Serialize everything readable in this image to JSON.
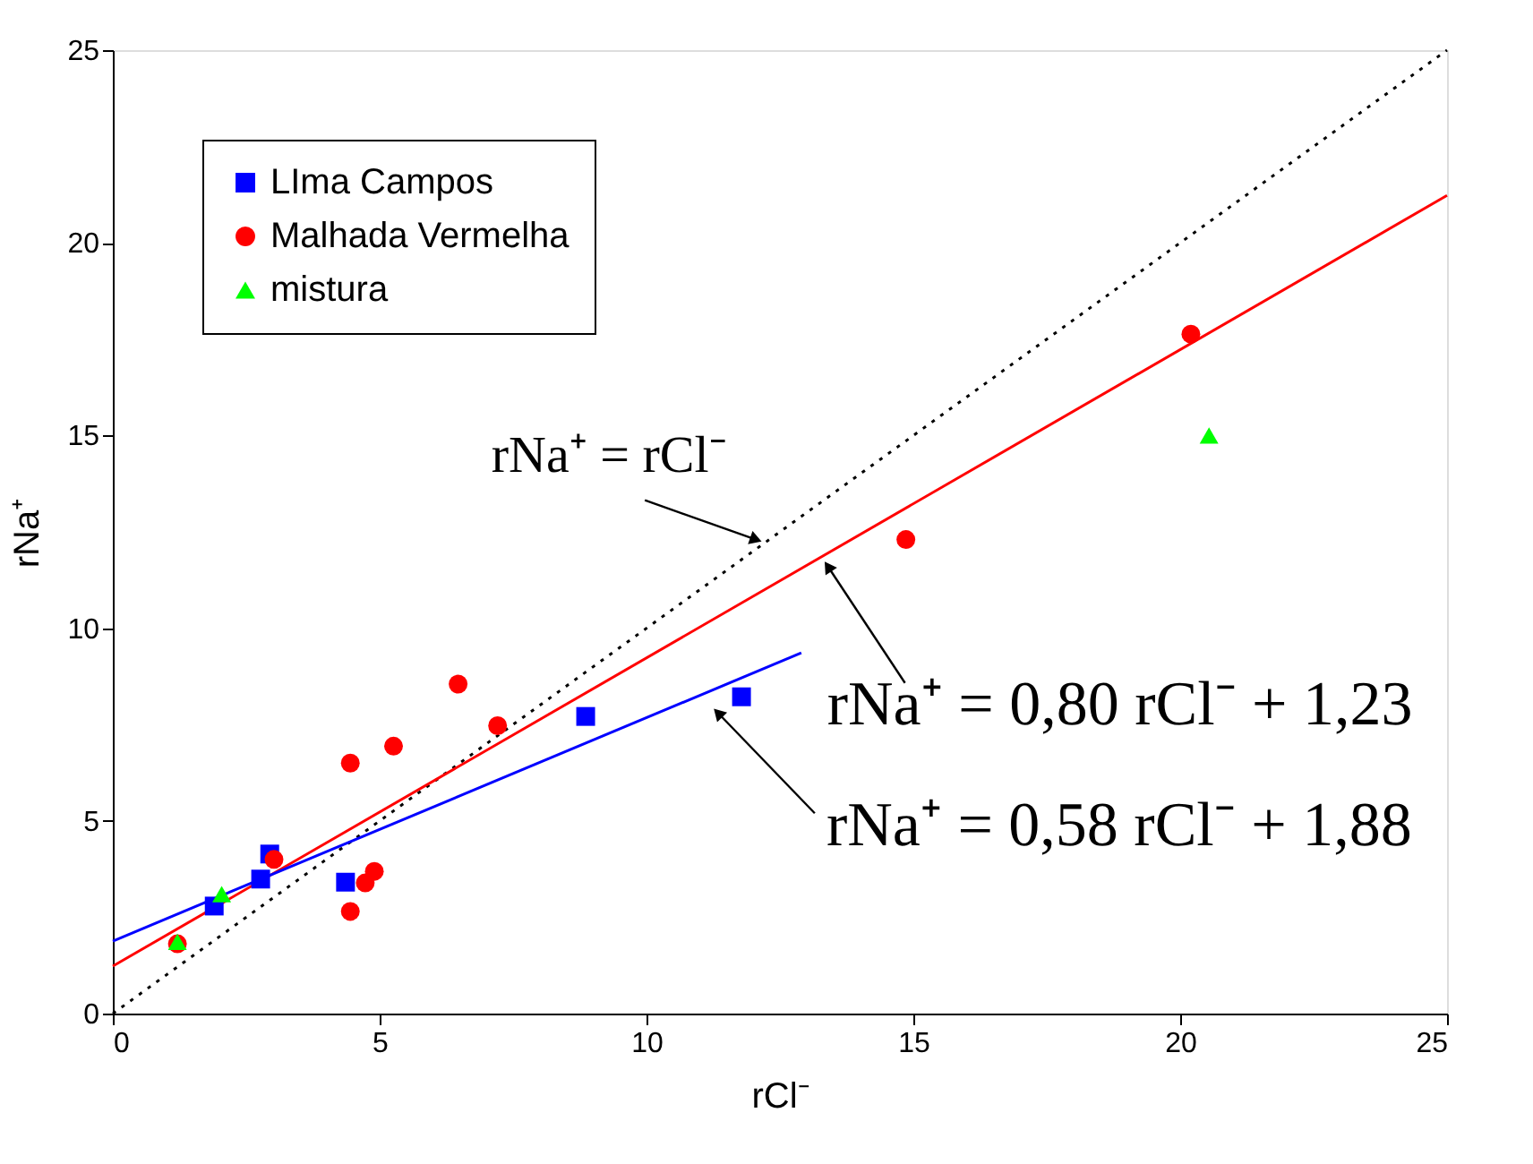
{
  "chart_data": {
    "type": "scatter",
    "xlabel": "rCl⁻",
    "ylabel": "rNa⁺",
    "xlim": [
      0,
      25
    ],
    "ylim": [
      0,
      25
    ],
    "xticks": [
      0,
      5,
      10,
      15,
      20,
      25
    ],
    "yticks": [
      0,
      5,
      10,
      15,
      20,
      25
    ],
    "grid": false,
    "legend": "top left",
    "series": [
      {
        "name": "LIma Campos",
        "marker": "square",
        "color": "#0000ff",
        "x": [
          1.9,
          2.77,
          2.94,
          4.36,
          8.86,
          11.78
        ],
        "values": [
          2.79,
          3.49,
          4.14,
          3.41,
          7.71,
          8.22
        ]
      },
      {
        "name": "Malhada Vermelha",
        "marker": "circle",
        "color": "#ff0000",
        "x": [
          1.21,
          3.02,
          4.45,
          5.26,
          6.47,
          7.21,
          4.9,
          4.73,
          4.45,
          14.86,
          20.2
        ],
        "values": [
          1.81,
          4.0,
          6.5,
          6.94,
          8.55,
          7.47,
          3.69,
          3.39,
          2.65,
          12.3,
          17.63
        ]
      },
      {
        "name": "mistura",
        "marker": "triangle",
        "color": "#00ff00",
        "x": [
          1.21,
          2.04,
          20.54
        ],
        "values": [
          1.86,
          3.1,
          15.0
        ]
      },
      {
        "type": "line",
        "marker": "none",
        "line_style": "dotted",
        "color": "#000000",
        "x": [
          0,
          25
        ],
        "values": [
          0,
          25
        ]
      },
      {
        "type": "line",
        "marker": "none",
        "line_style": "solid",
        "color": "#ff0000",
        "x": [
          0,
          25
        ],
        "values": [
          1.23,
          21.23
        ]
      },
      {
        "type": "line",
        "marker": "none",
        "line_style": "solid",
        "color": "#0000ff",
        "x": [
          0,
          12.9
        ],
        "values": [
          1.88,
          9.36
        ]
      }
    ],
    "annotations": [
      {
        "text": "rNa⁺ = rCl⁻",
        "x": 12.05,
        "y": 12.3
      },
      {
        "text": "rNa⁺ = 0,80 rCl⁻ + 1,23",
        "x": 13.4,
        "y": 11.6
      },
      {
        "text": "rNa⁺ = 0,58 rCl⁻ + 1,88",
        "x": 11.34,
        "y": 7.8
      }
    ]
  }
}
